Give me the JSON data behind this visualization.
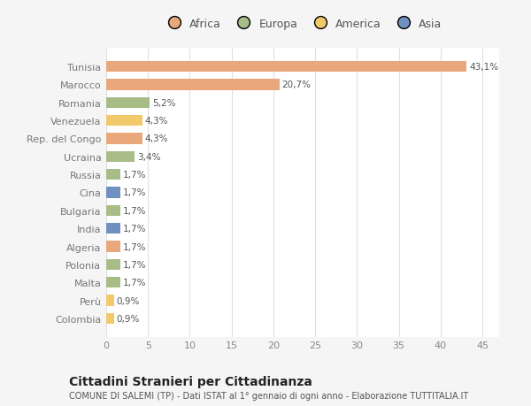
{
  "countries": [
    "Tunisia",
    "Marocco",
    "Romania",
    "Venezuela",
    "Rep. del Congo",
    "Ucraina",
    "Russia",
    "Cina",
    "Bulgaria",
    "India",
    "Algeria",
    "Polonia",
    "Malta",
    "Perù",
    "Colombia"
  ],
  "values": [
    43.1,
    20.7,
    5.2,
    4.3,
    4.3,
    3.4,
    1.7,
    1.7,
    1.7,
    1.7,
    1.7,
    1.7,
    1.7,
    0.9,
    0.9
  ],
  "labels": [
    "43,1%",
    "20,7%",
    "5,2%",
    "4,3%",
    "4,3%",
    "3,4%",
    "1,7%",
    "1,7%",
    "1,7%",
    "1,7%",
    "1,7%",
    "1,7%",
    "1,7%",
    "0,9%",
    "0,9%"
  ],
  "colors": [
    "#e8a87c",
    "#e8a87c",
    "#a8bc88",
    "#f2c96a",
    "#e8a87c",
    "#a8bc88",
    "#a8bc88",
    "#7090c0",
    "#a8bc88",
    "#7090c0",
    "#e8a87c",
    "#a8bc88",
    "#a8bc88",
    "#f2c96a",
    "#f2c96a"
  ],
  "continent_colors": {
    "Africa": "#e8a87c",
    "Europa": "#a8bc88",
    "America": "#f2c96a",
    "Asia": "#7090c0"
  },
  "legend_labels": [
    "Africa",
    "Europa",
    "America",
    "Asia"
  ],
  "title": "Cittadini Stranieri per Cittadinanza",
  "subtitle": "COMUNE DI SALEMI (TP) - Dati ISTAT al 1° gennaio di ogni anno - Elaborazione TUTTITALIA.IT",
  "xlim": [
    0,
    47
  ],
  "xticks": [
    0,
    5,
    10,
    15,
    20,
    25,
    30,
    35,
    40,
    45
  ],
  "background_color": "#f5f5f5",
  "plot_bg_color": "#ffffff",
  "bar_height": 0.6
}
